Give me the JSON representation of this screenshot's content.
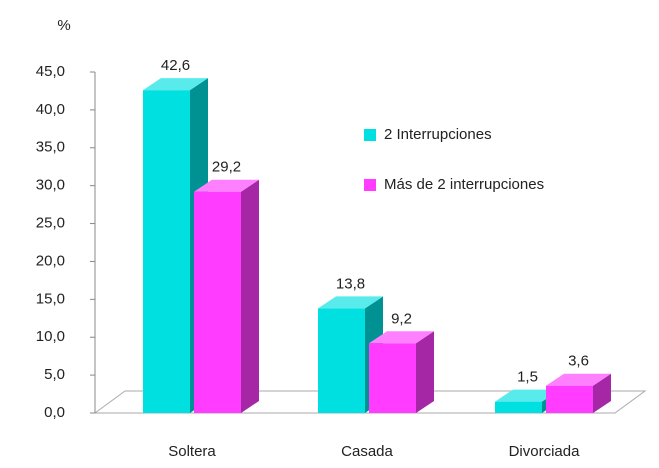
{
  "chart_data": {
    "type": "bar3d",
    "y_axis_label": "%",
    "categories": [
      "Soltera",
      "Casada",
      "Divorciada"
    ],
    "series": [
      {
        "name": "2 Interrupciones",
        "color": "#00e0e0",
        "values": [
          42.6,
          13.8,
          1.5
        ],
        "value_labels": [
          "42,6",
          "13,8",
          "1,5"
        ]
      },
      {
        "name": "Más de 2 interrupciones",
        "color": "#ff3cff",
        "values": [
          29.2,
          9.2,
          3.6
        ],
        "value_labels": [
          "29,2",
          "9,2",
          "3,6"
        ]
      }
    ],
    "ylim": [
      0,
      45
    ],
    "yticks": [
      {
        "value": 0,
        "label": "0,0"
      },
      {
        "value": 5,
        "label": "5,0"
      },
      {
        "value": 10,
        "label": "10,0"
      },
      {
        "value": 15,
        "label": "15,0"
      },
      {
        "value": 20,
        "label": "20,0"
      },
      {
        "value": 25,
        "label": "25,0"
      },
      {
        "value": 30,
        "label": "30,0"
      },
      {
        "value": 35,
        "label": "35,0"
      },
      {
        "value": 40,
        "label": "40,0"
      },
      {
        "value": 45,
        "label": "45,0"
      }
    ],
    "legend": "right",
    "grid": false
  }
}
